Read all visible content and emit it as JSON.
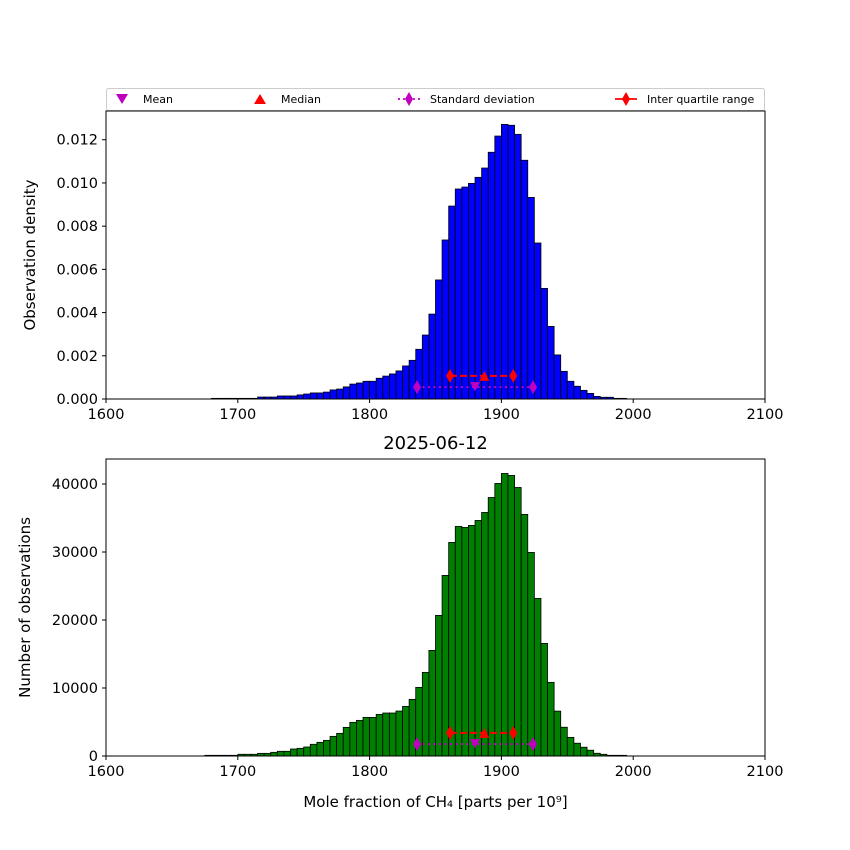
{
  "legend": {
    "placement": "top",
    "entries": [
      {
        "label": "Mean",
        "marker": "triangle-down",
        "color": "#bf00bf"
      },
      {
        "label": "Median",
        "marker": "triangle-up",
        "color": "#ff0000"
      },
      {
        "label": "Standard deviation",
        "marker": "diamond-dotted-line",
        "color": "#bf00bf"
      },
      {
        "label": "Inter quartile range",
        "marker": "diamond-solid-line",
        "color": "#ff0000"
      }
    ]
  },
  "chart_data": [
    {
      "type": "bar",
      "subtype": "histogram",
      "title": "",
      "xlabel": "",
      "ylabel": "Observation density",
      "xlim": [
        1600,
        2100
      ],
      "ylim": [
        0,
        0.01333
      ],
      "bin_width": 5,
      "bin_start": 1675,
      "bar_color": "#0000ff",
      "x_ticks": [
        "1600",
        "1700",
        "1800",
        "1900",
        "2000",
        "2100"
      ],
      "x_tick_values": [
        1600,
        1700,
        1800,
        1900,
        2000,
        2100
      ],
      "y_ticks": [
        "0.000",
        "0.002",
        "0.004",
        "0.006",
        "0.008",
        "0.010",
        "0.012"
      ],
      "y_tick_values": [
        0,
        0.002,
        0.004,
        0.006,
        0.008,
        0.01,
        0.012
      ],
      "values": [
        0,
        3e-05,
        3e-05,
        3e-05,
        3e-05,
        3e-05,
        3e-05,
        3e-05,
        9e-05,
        9e-05,
        9e-05,
        0.00014,
        0.00014,
        0.00014,
        0.00019,
        0.00023,
        0.00028,
        0.00028,
        0.00032,
        0.00042,
        0.00046,
        0.00056,
        0.00069,
        0.00074,
        0.00082,
        0.00082,
        0.00096,
        0.00106,
        0.00116,
        0.0013,
        0.00153,
        0.00179,
        0.0023,
        0.00296,
        0.00393,
        0.00551,
        0.00736,
        0.00893,
        0.00972,
        0.00981,
        0.00998,
        0.01026,
        0.01069,
        0.01142,
        0.01217,
        0.01271,
        0.01267,
        0.01225,
        0.01105,
        0.00933,
        0.00722,
        0.00512,
        0.00336,
        0.00204,
        0.00128,
        0.00082,
        0.00059,
        0.0004,
        0.00026,
        0.00012,
        8e-05,
        8e-05,
        3e-05,
        3e-05,
        0
      ],
      "stats": {
        "mean": 1880,
        "median": 1887,
        "std_range": [
          1836,
          1924
        ],
        "iqr_range": [
          1861,
          1909
        ],
        "std_y": 0.00055,
        "iqr_y": 0.00107
      }
    },
    {
      "type": "bar",
      "subtype": "histogram",
      "title": "2025-06-12",
      "xlabel": "Mole fraction of CH₄ [parts per 10⁹]",
      "ylabel": "Number of observations",
      "xlim": [
        1600,
        2100
      ],
      "ylim": [
        0,
        43680
      ],
      "bin_width": 5,
      "bin_start": 1675,
      "bar_color": "#008000",
      "x_ticks": [
        "1600",
        "1700",
        "1800",
        "1900",
        "2000",
        "2100"
      ],
      "x_tick_values": [
        1600,
        1700,
        1800,
        1900,
        2000,
        2100
      ],
      "y_ticks": [
        "0",
        "10000",
        "20000",
        "30000",
        "40000"
      ],
      "y_tick_values": [
        0,
        10000,
        20000,
        30000,
        40000
      ],
      "values": [
        100,
        100,
        100,
        100,
        100,
        250,
        250,
        250,
        390,
        390,
        540,
        690,
        690,
        1030,
        1130,
        1320,
        1720,
        2010,
        2300,
        2890,
        3330,
        4210,
        4950,
        5240,
        5680,
        5680,
        6120,
        6320,
        6320,
        6610,
        7300,
        8330,
        10090,
        12300,
        15530,
        20680,
        26560,
        31410,
        33760,
        33610,
        33910,
        34640,
        35820,
        38020,
        40080,
        41550,
        41260,
        39490,
        35530,
        29940,
        23180,
        16560,
        10830,
        6600,
        4230,
        2740,
        1880,
        1290,
        850,
        400,
        250,
        100,
        100,
        100,
        0
      ],
      "stats": {
        "mean": 1880,
        "median": 1887,
        "std_range": [
          1836,
          1924
        ],
        "iqr_range": [
          1861,
          1909
        ],
        "std_y": 1750,
        "iqr_y": 3400
      }
    }
  ]
}
